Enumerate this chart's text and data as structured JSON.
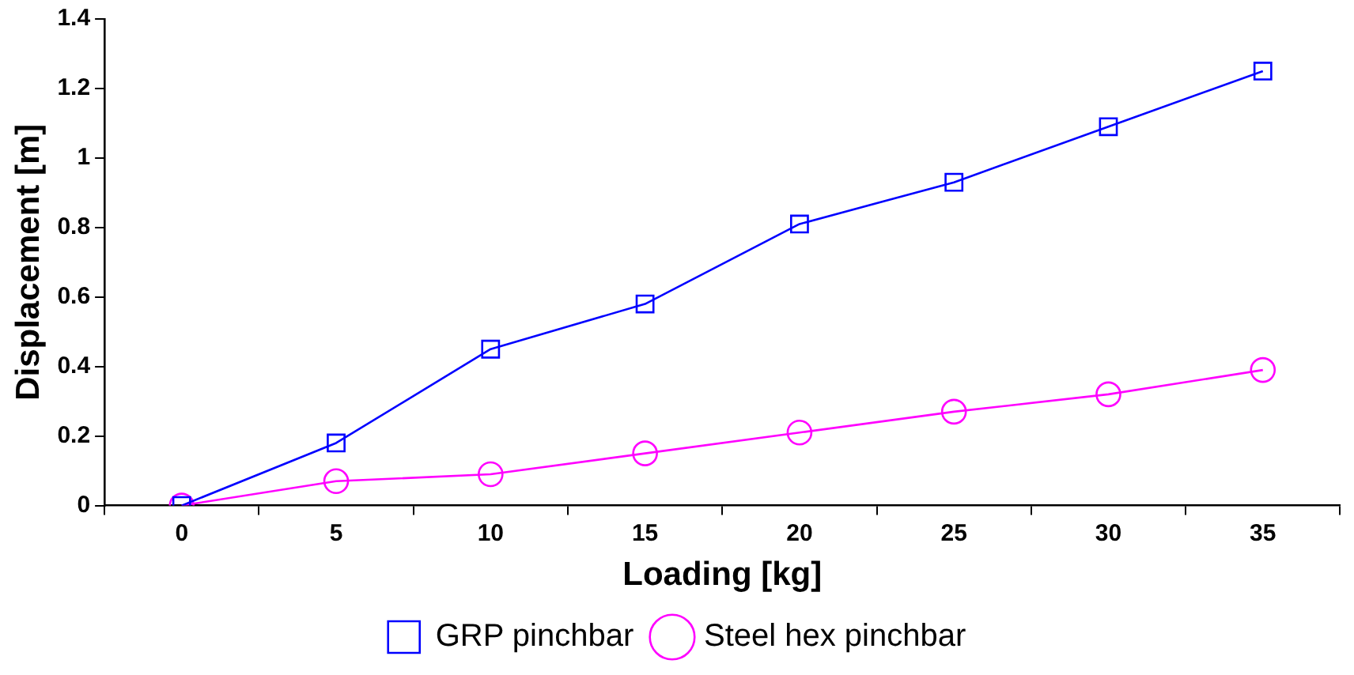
{
  "chart_data": {
    "type": "line",
    "xlabel": "Loading [kg]",
    "ylabel": "Displacement [m]",
    "categories": [
      "0",
      "5",
      "10",
      "15",
      "20",
      "25",
      "30",
      "35"
    ],
    "ylim": [
      0,
      1.4
    ],
    "yticks": [
      0,
      0.2,
      0.4,
      0.6,
      0.8,
      1,
      1.2,
      1.4
    ],
    "grid": false,
    "legend": "bottom",
    "line_style": "solid",
    "series": [
      {
        "name": "GRP pinchbar",
        "color": "#0000ff",
        "marker": "square",
        "values": [
          0,
          0.18,
          0.45,
          0.58,
          0.81,
          0.93,
          1.09,
          1.25
        ]
      },
      {
        "name": "Steel hex pinchbar",
        "color": "#ff00ff",
        "marker": "circle",
        "values": [
          0,
          0.07,
          0.09,
          0.15,
          0.21,
          0.27,
          0.32,
          0.39
        ]
      }
    ]
  }
}
